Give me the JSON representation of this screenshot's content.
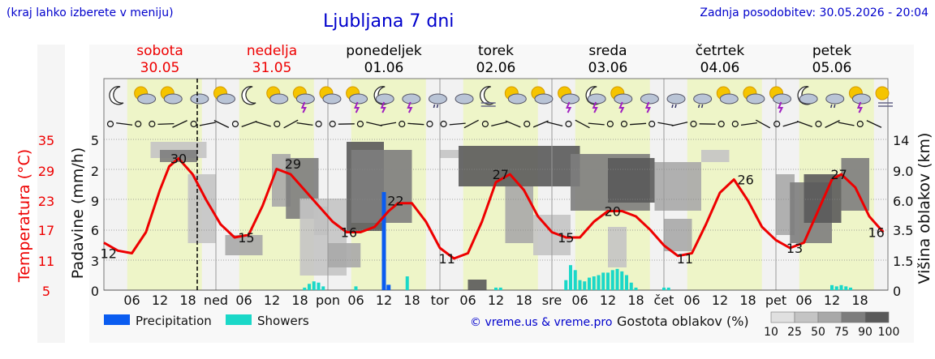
{
  "header": {
    "note": "(kraj lahko izberete v meniju)",
    "title": "Ljubljana 7 dni",
    "updated": "Zadnja posodobitev: 30.05.2026 - 20:04"
  },
  "colors": {
    "temperature": "#ee0000",
    "precipitation": "#0a5cf0",
    "showers": "#1ad8c8",
    "day_band": "#eef5c8",
    "night_band": "#f2f2f2",
    "weekend": "#ee0000",
    "weekday": "#000000"
  },
  "chart_data": {
    "type": "line",
    "title": "Ljubljana 7 dni",
    "days": [
      {
        "name": "sobota",
        "date": "30.05",
        "weekend": true
      },
      {
        "name": "nedelja",
        "date": "31.05",
        "weekend": true
      },
      {
        "name": "ponedeljek",
        "date": "01.06",
        "weekend": false
      },
      {
        "name": "torek",
        "date": "02.06",
        "weekend": false
      },
      {
        "name": "sreda",
        "date": "03.06",
        "weekend": false
      },
      {
        "name": "četrtek",
        "date": "04.06",
        "weekend": false
      },
      {
        "name": "petek",
        "date": "05.06",
        "weekend": false
      }
    ],
    "x_ticks": [
      {
        "hour": 6,
        "label": "06"
      },
      {
        "hour": 12,
        "label": "12"
      },
      {
        "hour": 18,
        "label": "18"
      },
      {
        "hour": 24,
        "label": "ned"
      },
      {
        "hour": 30,
        "label": "06"
      },
      {
        "hour": 36,
        "label": "12"
      },
      {
        "hour": 42,
        "label": "18"
      },
      {
        "hour": 48,
        "label": "pon"
      },
      {
        "hour": 54,
        "label": "06"
      },
      {
        "hour": 60,
        "label": "12"
      },
      {
        "hour": 66,
        "label": "18"
      },
      {
        "hour": 72,
        "label": "tor"
      },
      {
        "hour": 78,
        "label": "06"
      },
      {
        "hour": 84,
        "label": "12"
      },
      {
        "hour": 90,
        "label": "18"
      },
      {
        "hour": 96,
        "label": "sre"
      },
      {
        "hour": 102,
        "label": "06"
      },
      {
        "hour": 108,
        "label": "12"
      },
      {
        "hour": 114,
        "label": "18"
      },
      {
        "hour": 120,
        "label": "čet"
      },
      {
        "hour": 126,
        "label": "06"
      },
      {
        "hour": 132,
        "label": "12"
      },
      {
        "hour": 138,
        "label": "18"
      },
      {
        "hour": 144,
        "label": "pet"
      },
      {
        "hour": 150,
        "label": "06"
      },
      {
        "hour": 156,
        "label": "12"
      },
      {
        "hour": 162,
        "label": "18"
      }
    ],
    "left_axis_temperature": {
      "label": "Temperatura (°C)",
      "ticks": [
        "35",
        "29",
        "23",
        "17",
        "11",
        "5"
      ],
      "ylim": [
        5,
        35
      ]
    },
    "left_axis_precip": {
      "label": "Padavine (mm/h)",
      "ticks": [
        "5",
        "2",
        "9",
        "6",
        "3",
        "0"
      ]
    },
    "right_axis": {
      "label": "Višina oblakov (km)",
      "ticks": [
        "14",
        "9.0",
        "6.0",
        "3.5",
        "1.5",
        "0"
      ]
    },
    "now_hour": 20,
    "temperature": {
      "x": [
        0,
        3,
        6,
        9,
        12,
        14,
        16,
        19,
        22,
        25,
        28,
        31,
        34,
        37,
        40,
        43,
        46,
        49,
        52,
        55,
        58,
        61,
        63,
        66,
        69,
        72,
        75,
        78,
        81,
        84,
        87,
        90,
        93,
        96,
        99,
        102,
        105,
        108,
        111,
        114,
        117,
        120,
        123,
        126,
        129,
        132,
        135,
        138,
        141,
        144,
        147,
        150,
        153,
        156,
        158,
        161,
        164,
        167
      ],
      "y": [
        14,
        12.5,
        12,
        16,
        24,
        28.5,
        30,
        27,
        22,
        17.5,
        15,
        15.5,
        21,
        28,
        27,
        24,
        21,
        18,
        16,
        16,
        17,
        20,
        21.5,
        21.5,
        18,
        13,
        11,
        12,
        18,
        25.5,
        27,
        24,
        19,
        16,
        15,
        15,
        18,
        20,
        20,
        19,
        16.5,
        13.5,
        11.5,
        12,
        17.5,
        23.5,
        26,
        22,
        17,
        14.5,
        13,
        14,
        20,
        26,
        27,
        24.5,
        19,
        16
      ]
    },
    "temperature_labels": [
      {
        "x": 1,
        "y": 12,
        "text": "12"
      },
      {
        "x": 16,
        "y": 30,
        "text": "30"
      },
      {
        "x": 30.5,
        "y": 15,
        "text": "15"
      },
      {
        "x": 40.5,
        "y": 29,
        "text": "29"
      },
      {
        "x": 52.5,
        "y": 16,
        "text": "16"
      },
      {
        "x": 62.5,
        "y": 22,
        "text": "22"
      },
      {
        "x": 73.5,
        "y": 11,
        "text": "11"
      },
      {
        "x": 85,
        "y": 27,
        "text": "27"
      },
      {
        "x": 99,
        "y": 15,
        "text": "15"
      },
      {
        "x": 109,
        "y": 20,
        "text": "20"
      },
      {
        "x": 124.5,
        "y": 11,
        "text": "11"
      },
      {
        "x": 137.5,
        "y": 26,
        "text": "26"
      },
      {
        "x": 148,
        "y": 13,
        "text": "13"
      },
      {
        "x": 157.5,
        "y": 27,
        "text": "27"
      },
      {
        "x": 165.5,
        "y": 16,
        "text": "16"
      }
    ],
    "precipitation": {
      "x": [
        60,
        61
      ],
      "y": [
        5.5,
        0.3
      ]
    },
    "showers": {
      "x": [
        43,
        44,
        45,
        46,
        47,
        54,
        65,
        84,
        85,
        99,
        100,
        101,
        102,
        103,
        104,
        105,
        106,
        107,
        108,
        109,
        110,
        111,
        112,
        113,
        114,
        120,
        121,
        156,
        157,
        158,
        159,
        160
      ],
      "y": [
        0.1,
        0.25,
        0.35,
        0.3,
        0.15,
        0.15,
        0.55,
        0.1,
        0.1,
        0.4,
        1.0,
        0.8,
        0.4,
        0.35,
        0.5,
        0.55,
        0.6,
        0.7,
        0.7,
        0.8,
        0.85,
        0.75,
        0.6,
        0.3,
        0.1,
        0.1,
        0.1,
        0.2,
        0.15,
        0.2,
        0.15,
        0.1
      ]
    },
    "legend": [
      {
        "name": "Precipitation",
        "color": "#0a5cf0"
      },
      {
        "name": "Showers",
        "color": "#1ad8c8"
      }
    ],
    "credit": "© vreme.us & vreme.pro",
    "cloud_scale": {
      "label": "Gostota oblakov (%)",
      "stops": [
        "10",
        "25",
        "50",
        "75",
        "90",
        "100"
      ]
    },
    "weather_icons": [
      "moon",
      "sun-cloud",
      "sun-cloud",
      "cloud-sun",
      "sun-cloud",
      "moon",
      "sun-cloud",
      "sun-storm",
      "sun-cloud",
      "sun-storm",
      "moon-storm",
      "cloud-storm",
      "cloud-rain",
      "cloud-sun",
      "moon-fog",
      "sun-cloud",
      "sun-cloud",
      "sun-storm",
      "moon-storm",
      "sun-storm",
      "cloud-storm",
      "cloud-rain",
      "cloud-rain",
      "sun-cloud",
      "sun-cloud",
      "sun-storm",
      "cloud-night",
      "cloud-rain",
      "sun-storm",
      "sun-fog"
    ]
  }
}
